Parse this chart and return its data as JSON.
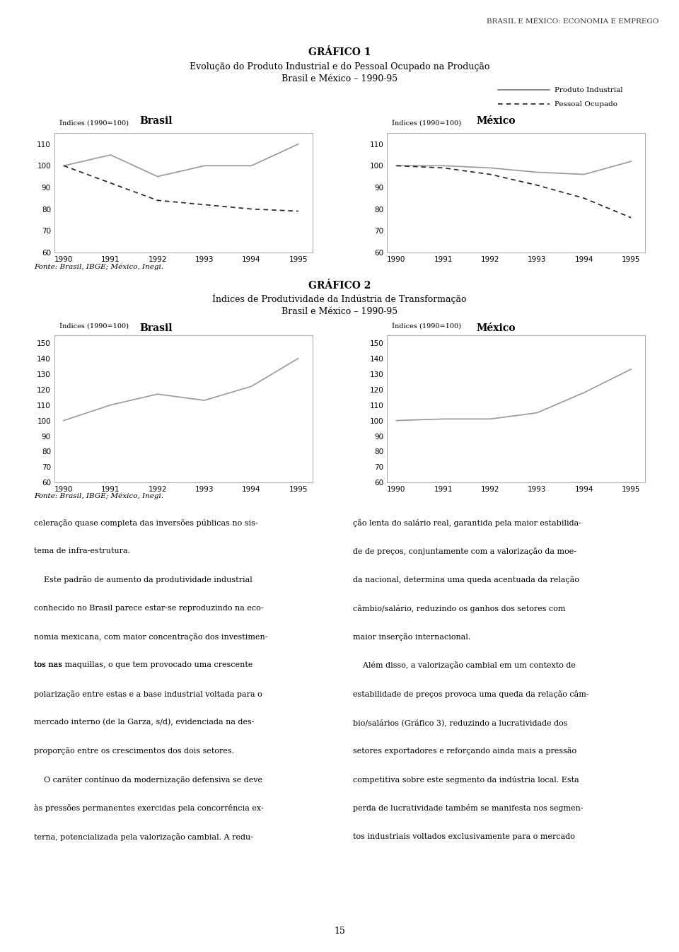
{
  "page_title": "BRASIL E MÉXICO: ECONOMIA E EMPREGO",
  "grafico1": {
    "title_bold": "GRÁFICO 1",
    "title_line1": "Evolução do Produto Industrial e do Pessoal Ocupado na Produção",
    "title_line2": "Brasil e México – 1990-95",
    "legend": {
      "solid": "Produto Industrial",
      "dashed": "Pessoal Ocupado"
    },
    "xlabel": "Índices (1990=100)",
    "years": [
      1990,
      1991,
      1992,
      1993,
      1994,
      1995
    ],
    "brasil": {
      "label": "Brasil",
      "produto": [
        100,
        105,
        95,
        100,
        100,
        110
      ],
      "pessoal": [
        100,
        92,
        84,
        82,
        80,
        79
      ]
    },
    "mexico": {
      "label": "México",
      "produto": [
        100,
        100,
        99,
        97,
        96,
        102
      ],
      "pessoal": [
        100,
        99,
        96,
        91,
        85,
        76
      ]
    },
    "ylim": [
      60,
      115
    ],
    "yticks": [
      60,
      70,
      80,
      90,
      100,
      110
    ]
  },
  "fonte1": "Fonte: Brasil, IBGE; México, Inegi.",
  "grafico2": {
    "title_bold": "GRÁFICO 2",
    "title_line1": "Índices de Produtividade da Indústria de Transformação",
    "title_line2": "Brasil e México – 1990-95",
    "xlabel": "Índices (1990=100)",
    "years": [
      1990,
      1991,
      1992,
      1993,
      1994,
      1995
    ],
    "brasil": {
      "label": "Brasil",
      "values": [
        100,
        110,
        117,
        113,
        122,
        140
      ]
    },
    "mexico": {
      "label": "México",
      "values": [
        100,
        101,
        101,
        105,
        118,
        133
      ]
    },
    "ylim": [
      60,
      155
    ],
    "yticks": [
      60,
      70,
      80,
      90,
      100,
      110,
      120,
      130,
      140,
      150
    ]
  },
  "fonte2": "Fonte: Brasil, IBGE; México, Inegi.",
  "body_left": "celeração quase completa das inversões públicas no sis-\ntema de infra-estrutura.\n    Este padrão de aumento da produtividade industrial\nconhecido no Brasil parece estar-se reproduzindo na eco-\nnomia mexicana, com maior concentração dos investimen-\ntos nas maquillas, o que tem provocado uma crescente\npolarização entre estas e a base industrial voltada para o\nmercado interno (de la Garza, s/d), evidenciada na des-\nproporção entre os crescimentos dos dois setores.\n    O caráter contínuo da modernização defensiva se deve\nàs pressões permanentes exercidas pela concorrência ex-\nterna, potencializada pela valorização cambial. A redu-",
  "body_right": "ção lenta do salário real, garantida pela maior estabilida-\nde de preços, conjuntamente com a valorização da moe-\nda nacional, determina uma queda acentuada da relação\ncâmbio/salário, reduzindo os ganhos dos setores com\nmaior inserção internacional.\n    Além disso, a valorização cambial em um contexto de\nestabilidade de preços provoca uma queda da relação câm-\nbio/salários (Gráfico 3), reduzindo a lucratividade dos\nsetores exportadores e reforçando ainda mais a pressão\ncompetitiva sobre este segmento da indústria local. Esta\nperda de lucratividade também se manifesta nos segmen-\ntos industriais voltados exclusivamente para o mercado",
  "page_number": "15",
  "line_color": "#888888",
  "text_color": "#000000",
  "bg_color": "#ffffff"
}
